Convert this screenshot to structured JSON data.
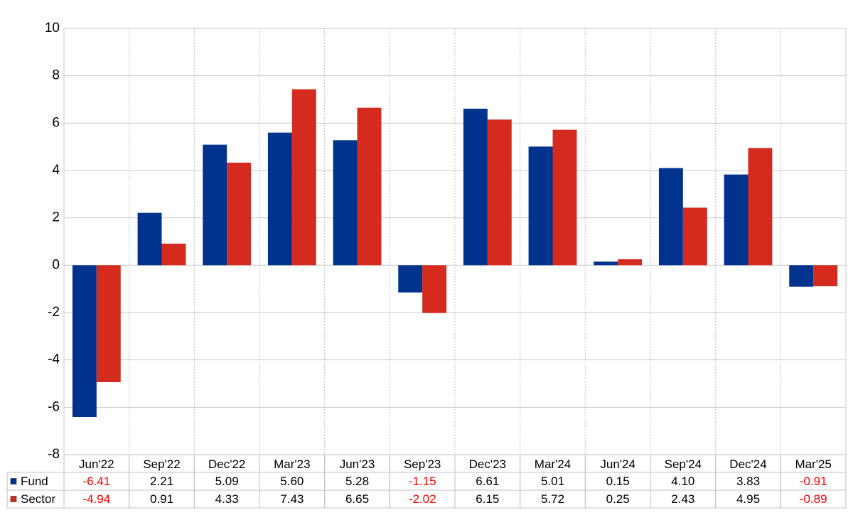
{
  "chart_data": {
    "type": "bar",
    "categories": [
      "Jun'22",
      "Sep'22",
      "Dec'22",
      "Mar'23",
      "Jun'23",
      "Sep'23",
      "Dec'23",
      "Mar'24",
      "Jun'24",
      "Sep'24",
      "Dec'24",
      "Mar'25"
    ],
    "series": [
      {
        "name": "Fund",
        "color": "#00338d",
        "values": [
          -6.41,
          2.21,
          5.09,
          5.6,
          5.28,
          -1.15,
          6.61,
          5.01,
          0.15,
          4.1,
          3.83,
          -0.91
        ],
        "value_labels": [
          "-6.41",
          "2.21",
          "5.09",
          "5.60",
          "5.28",
          "-1.15",
          "6.61",
          "5.01",
          "0.15",
          "4.10",
          "3.83",
          "-0.91"
        ]
      },
      {
        "name": "Sector",
        "color": "#d52b1e",
        "values": [
          -4.94,
          0.91,
          4.33,
          7.43,
          6.65,
          -2.02,
          6.15,
          5.72,
          0.25,
          2.43,
          4.95,
          -0.89
        ],
        "value_labels": [
          "-4.94",
          "0.91",
          "4.33",
          "7.43",
          "6.65",
          "-2.02",
          "6.15",
          "5.72",
          "0.25",
          "2.43",
          "4.95",
          "-0.89"
        ]
      }
    ],
    "ylim": [
      -8,
      10
    ],
    "yticks": [
      -8,
      -6,
      -4,
      -2,
      0,
      2,
      4,
      6,
      8,
      10
    ],
    "grid": true,
    "negative_label_color": "#ff0000"
  }
}
